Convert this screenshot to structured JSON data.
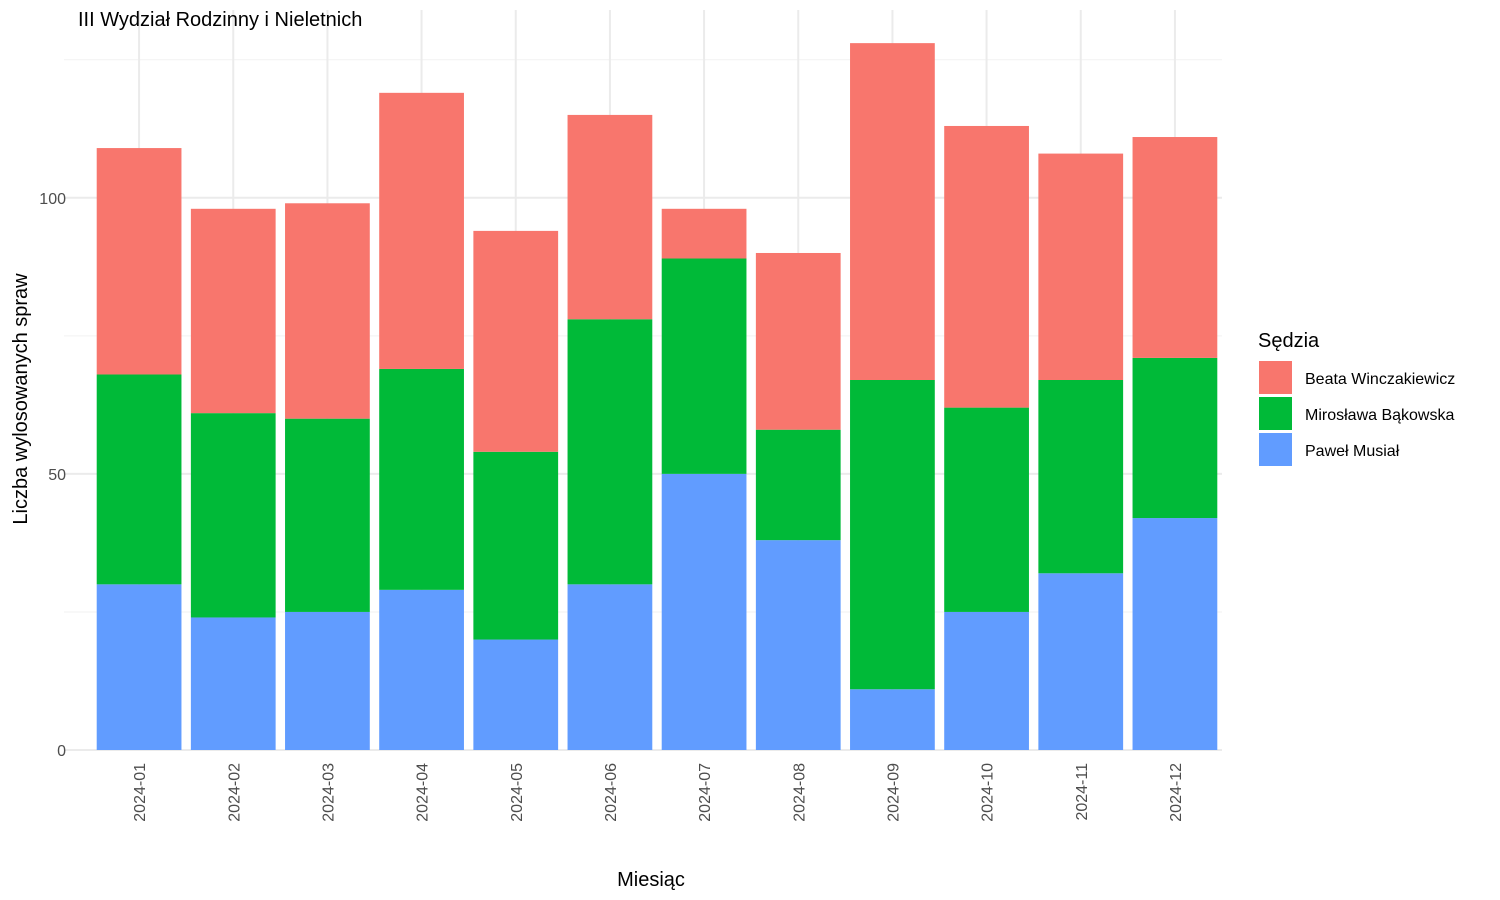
{
  "chart_data": {
    "type": "bar",
    "stacked": true,
    "title": "III Wydział Rodzinny i Nieletnich",
    "xlabel": "Miesiąc",
    "ylabel": "Liczba wylosowanych spraw",
    "categories": [
      "2024-01",
      "2024-02",
      "2024-03",
      "2024-04",
      "2024-05",
      "2024-06",
      "2024-07",
      "2024-08",
      "2024-09",
      "2024-10",
      "2024-11",
      "2024-12"
    ],
    "ylim": [
      0,
      134
    ],
    "yticks": [
      0,
      50,
      100
    ],
    "grid": true,
    "legend": {
      "title": "Sędzia",
      "position": "right"
    },
    "series": [
      {
        "name": "Paweł Musiał",
        "color": "#619CFF",
        "values": [
          30,
          24,
          25,
          29,
          20,
          30,
          50,
          38,
          11,
          25,
          32,
          42
        ]
      },
      {
        "name": "Mirosława Bąkowska",
        "color": "#00BA38",
        "values": [
          38,
          37,
          35,
          40,
          34,
          48,
          39,
          20,
          56,
          37,
          35,
          29
        ]
      },
      {
        "name": "Beata Winczakiewicz",
        "color": "#F8766D",
        "values": [
          41,
          37,
          39,
          50,
          40,
          37,
          9,
          32,
          61,
          51,
          41,
          40
        ]
      }
    ]
  }
}
